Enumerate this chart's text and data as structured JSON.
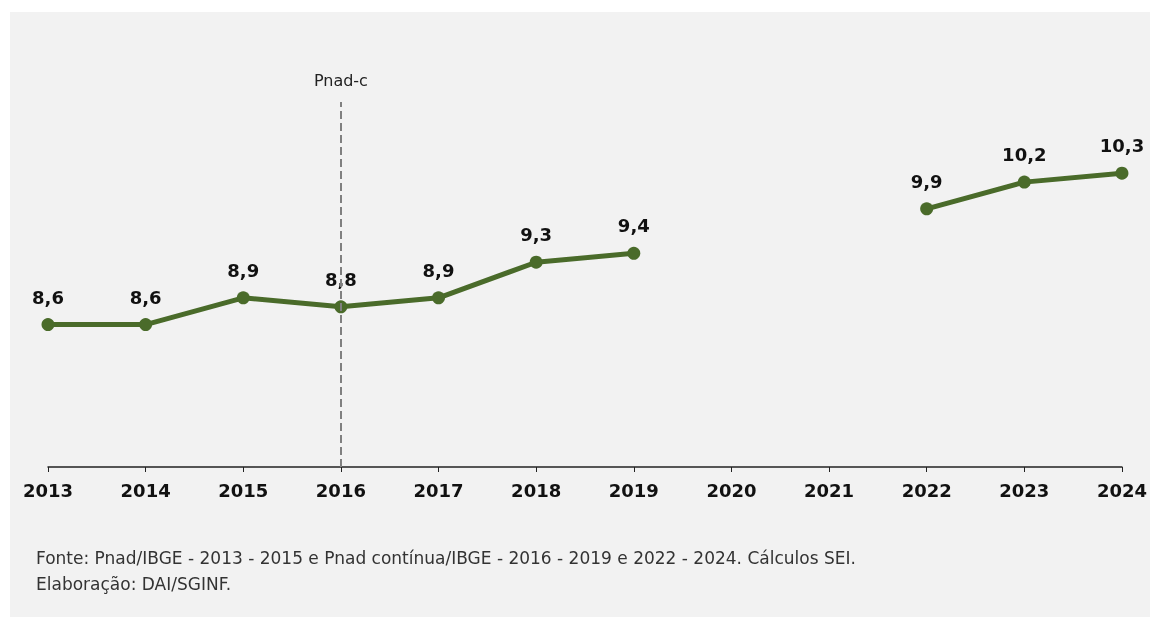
{
  "chart_data": {
    "type": "line",
    "categories": [
      "2013",
      "2014",
      "2015",
      "2016",
      "2017",
      "2018",
      "2019",
      "2020",
      "2021",
      "2022",
      "2023",
      "2024"
    ],
    "series": [
      {
        "color": "#4a6b2a",
        "values": [
          8.6,
          8.6,
          8.9,
          8.8,
          8.9,
          9.3,
          9.4,
          null,
          null,
          9.9,
          10.2,
          10.3
        ],
        "value_labels": [
          "8,6",
          "8,6",
          "8,9",
          "8,8",
          "8,9",
          "9,3",
          "9,4",
          null,
          null,
          "9,9",
          "10,2",
          "10,3"
        ]
      }
    ],
    "ylim": [
      7,
      11.1
    ],
    "tick_labels": "x",
    "grid": false,
    "marker": "circle",
    "line_style": "solid",
    "ref_lines": [
      {
        "axis": "x",
        "value": "2016",
        "label": "Pnad-c",
        "color": "#808080",
        "line_style": "dashed"
      }
    ],
    "annotations": [
      "Fonte: Pnad/IBGE - 2013 - 2015 e Pnad contínua/IBGE - 2016 - 2019 e 2022 - 2024. Cálculos SEI.",
      "Elaboração: DAI/SGINF."
    ]
  }
}
